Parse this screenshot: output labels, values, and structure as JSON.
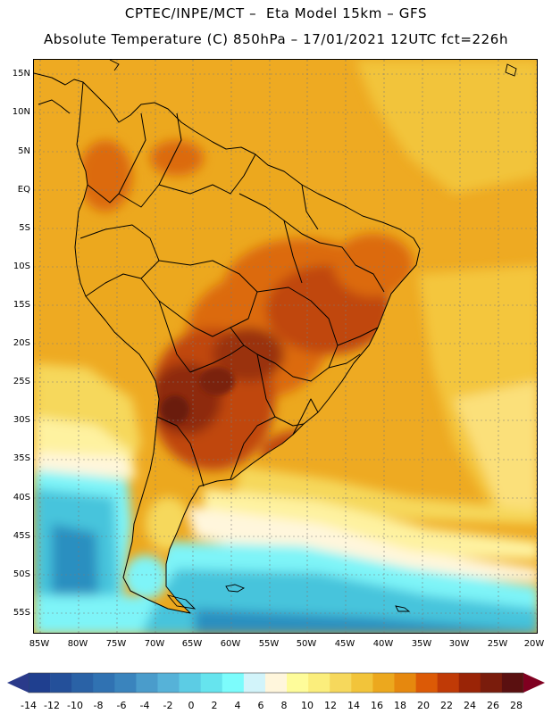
{
  "header": {
    "line1": "CPTEC/INPE/MCT –  Eta Model 15km – GFS",
    "line2": "Absolute Temperature (C) 850hPa – 17/01/2021 12UTC fct=226h"
  },
  "axes": {
    "lat_labels": [
      "15N",
      "10N",
      "5N",
      "EQ",
      "5S",
      "10S",
      "15S",
      "20S",
      "25S",
      "30S",
      "35S",
      "40S",
      "45S",
      "50S",
      "55S"
    ],
    "lon_labels": [
      "85W",
      "80W",
      "75W",
      "70W",
      "65W",
      "60W",
      "55W",
      "50W",
      "45W",
      "40W",
      "35W",
      "30W",
      "25W",
      "20W"
    ]
  },
  "colorbar": {
    "labels": [
      "-14",
      "-12",
      "-10",
      "-8",
      "-6",
      "-4",
      "-2",
      "0",
      "2",
      "4",
      "6",
      "8",
      "10",
      "12",
      "14",
      "16",
      "18",
      "20",
      "22",
      "24",
      "26",
      "28"
    ],
    "colors": [
      "#1f3f8f",
      "#24509a",
      "#2a62a6",
      "#3072b2",
      "#3a84bd",
      "#4a9ccb",
      "#56b2d8",
      "#5ccce4",
      "#66e4ee",
      "#7cfcfc",
      "#d2f4fa",
      "#fff6dc",
      "#fefc9a",
      "#fbee7c",
      "#f6d85c",
      "#f2c43a",
      "#eca81e",
      "#e6880e",
      "#dc5a06",
      "#c03a06",
      "#9a2406",
      "#7a1c0c",
      "#5a1010"
    ],
    "under_color": "#2a3a8a",
    "over_color": "#800020"
  },
  "palette": {
    "ocean_warm": "#eeaa22",
    "ocean_mid": "#f4c63c",
    "ocean_pale": "#fef2a0",
    "ocean_cream": "#fff6dc",
    "ocean_cyan": "#7ef4f8",
    "ocean_blue": "#46c4dc",
    "land_base": "#eca81e",
    "land_hot": "#dc6a08",
    "land_hotter": "#b4420a",
    "land_hottest": "#7a2410",
    "border": "#000000",
    "grid": "#888888"
  }
}
